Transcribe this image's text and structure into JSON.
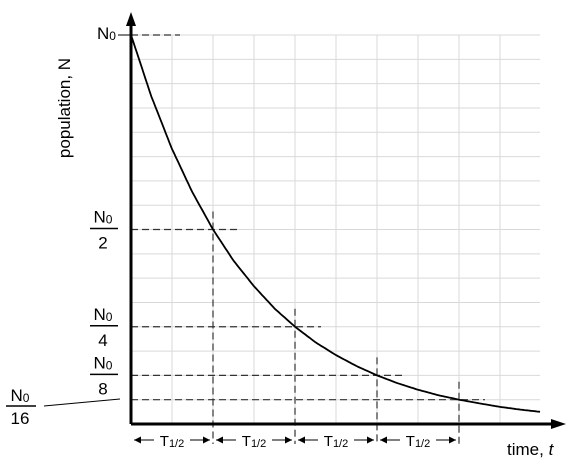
{
  "chart_data": {
    "type": "line",
    "title": "",
    "xlabel": "time, t",
    "ylabel": "population, N",
    "xlim": [
      0,
      5
    ],
    "ylim": [
      0,
      1
    ],
    "grid": true,
    "series": [
      {
        "x": [
          0,
          0.25,
          0.5,
          0.75,
          1,
          1.25,
          1.5,
          1.75,
          2,
          2.25,
          2.5,
          2.75,
          3,
          3.25,
          3.5,
          3.75,
          4,
          4.25,
          4.5,
          4.75,
          5
        ],
        "values": [
          1,
          0.841,
          0.707,
          0.595,
          0.5,
          0.42,
          0.354,
          0.297,
          0.25,
          0.21,
          0.177,
          0.149,
          0.125,
          0.105,
          0.088,
          0.074,
          0.0625,
          0.053,
          0.044,
          0.037,
          0.031
        ]
      }
    ],
    "markers": [
      {
        "x": 1,
        "y": 0.5,
        "label_top": "N0",
        "label_bottom": "2"
      },
      {
        "x": 2,
        "y": 0.25,
        "label_top": "N0",
        "label_bottom": "4"
      },
      {
        "x": 3,
        "y": 0.125,
        "label_top": "N0",
        "label_bottom": "8"
      },
      {
        "x": 4,
        "y": 0.0625,
        "label_top": "N0",
        "label_bottom": "16"
      }
    ],
    "y_top_label": "N0",
    "intervals": [
      {
        "from": 0,
        "to": 1,
        "label": "T1/2"
      },
      {
        "from": 1,
        "to": 2,
        "label": "T1/2"
      },
      {
        "from": 2,
        "to": 3,
        "label": "T1/2"
      },
      {
        "from": 3,
        "to": 4,
        "label": "T1/2"
      }
    ],
    "colors": {
      "axis": "#000000",
      "curve": "#000000",
      "grid": "#d9d9d9",
      "guide": "#333333"
    }
  }
}
